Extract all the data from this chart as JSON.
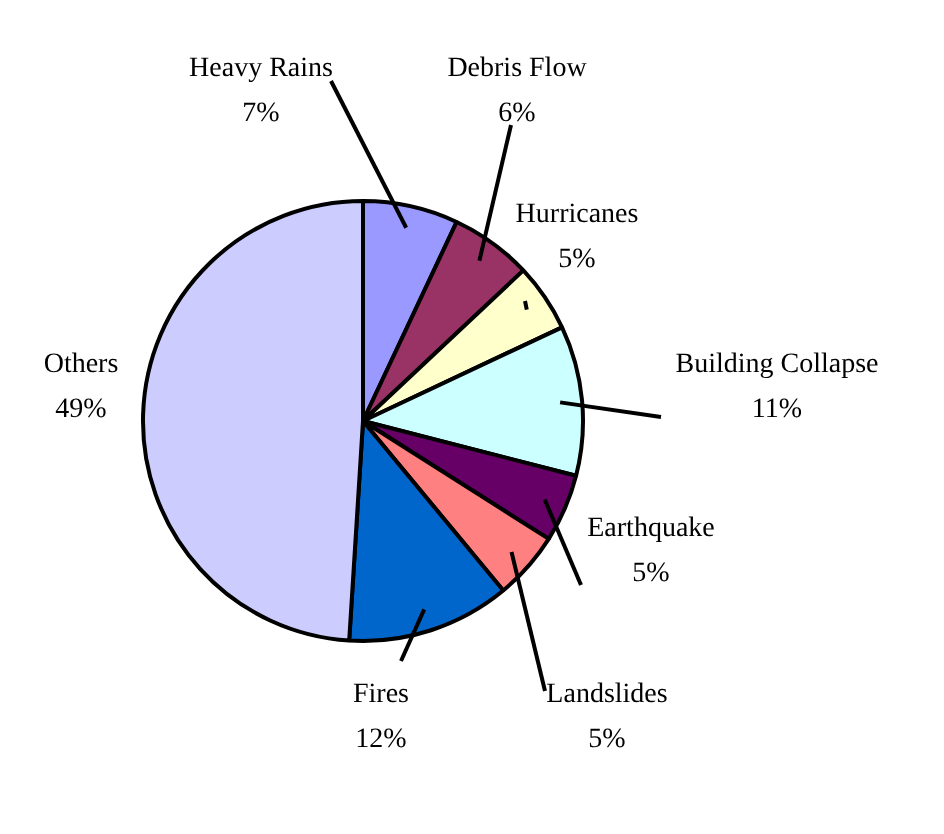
{
  "chart_data": {
    "type": "pie",
    "categories": [
      "Heavy Rains",
      "Debris Flow",
      "Hurricanes",
      "Building Collapse",
      "Earthquake",
      "Landslides",
      "Fires",
      "Others"
    ],
    "values": [
      7,
      6,
      5,
      11,
      5,
      5,
      12,
      49
    ],
    "colors": [
      "#9999ff",
      "#993366",
      "#ffffcc",
      "#ccffff",
      "#660066",
      "#ff8080",
      "#0066cc",
      "#ccccff"
    ],
    "value_labels": [
      "7%",
      "6%",
      "5%",
      "11%",
      "5%",
      "5%",
      "12%",
      "49%"
    ]
  }
}
